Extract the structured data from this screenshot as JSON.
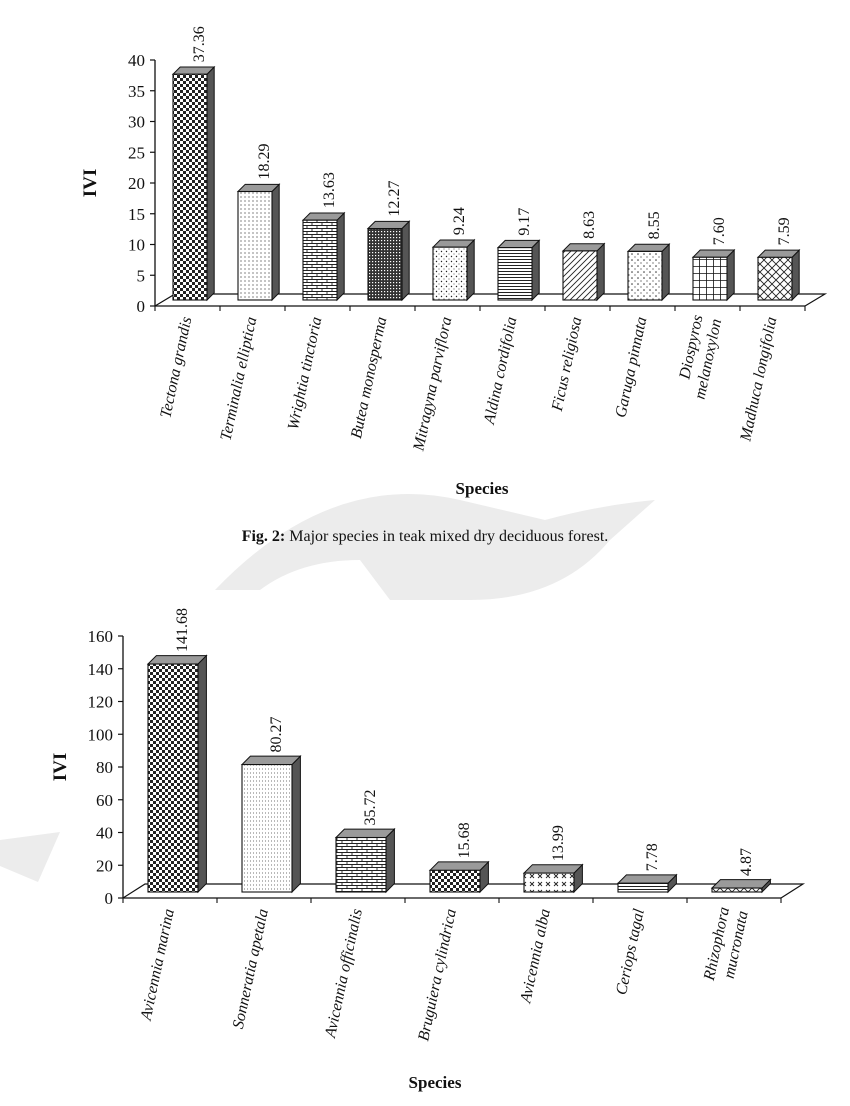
{
  "caption": {
    "label": "Fig. 2:",
    "text": "Major species in teak mixed dry deciduous forest."
  },
  "colors": {
    "axis": "#111111",
    "bar_front": "#ffffff",
    "bar_pattern": "#222222",
    "bar_side": "#555555",
    "bar_top": "#9a9a9a",
    "watermark": "#e6e6e6"
  },
  "chart_data": [
    {
      "type": "bar",
      "title": "",
      "xlabel": "Species",
      "ylabel": "IVI",
      "ylim": [
        0,
        40
      ],
      "yticks": [
        "0",
        "5",
        "10",
        "15",
        "20",
        "25",
        "30",
        "35",
        "40"
      ],
      "grid": false,
      "legend": "none",
      "three_d": true,
      "categories": [
        "Tectona grandis",
        "Terminalia elliptica",
        "Wrightia  tinctoria",
        "Butea monosperma",
        "Mitragyna parviflora",
        "Aldina cordifolia",
        "Ficus religiosa",
        "Garuga pinnata",
        "Diospyros melanoxylon",
        "Madhuca longifolia"
      ],
      "values": [
        37.36,
        18.29,
        13.63,
        12.27,
        9.24,
        9.17,
        8.63,
        8.55,
        7.6,
        7.59
      ],
      "value_labels": [
        "37.36",
        "18.29",
        "13.63",
        "12.27",
        "9.24",
        "9.17",
        "8.63",
        "8.55",
        "7.60",
        "7.59"
      ]
    },
    {
      "type": "bar",
      "title": "",
      "xlabel": "Species",
      "ylabel": "IVI",
      "ylim": [
        0,
        160
      ],
      "yticks": [
        "0",
        "20",
        "40",
        "60",
        "80",
        "100",
        "120",
        "140",
        "160"
      ],
      "grid": false,
      "legend": "none",
      "three_d": true,
      "categories": [
        "Avicennia  marina",
        "Sonneratia apetala",
        "Avicennia officinalis",
        "Bruguiera cylindrica",
        "Avicennia alba",
        "Ceriops tagal",
        "Rhizophora mucronata"
      ],
      "values": [
        141.68,
        80.27,
        35.72,
        15.68,
        13.99,
        7.78,
        4.87
      ],
      "value_labels": [
        "141.68",
        "80.27",
        "35.72",
        "15.68",
        "13.99",
        "7.78",
        "4.87"
      ]
    }
  ]
}
